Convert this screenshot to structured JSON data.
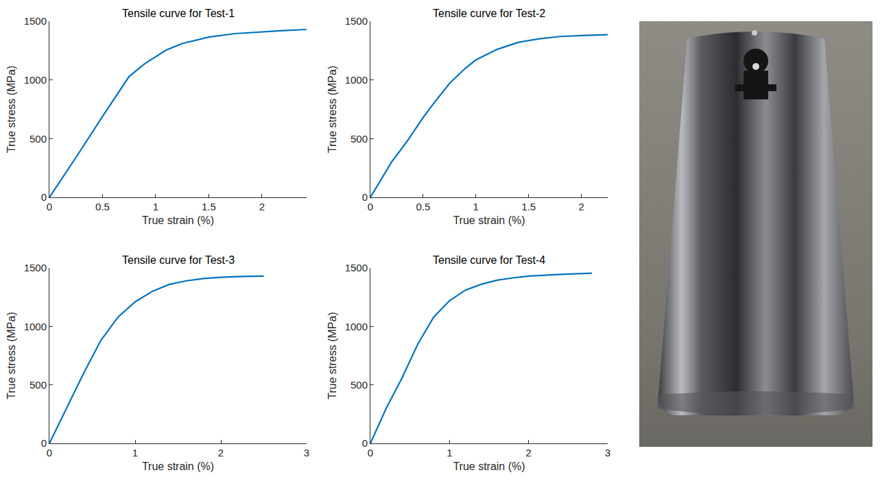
{
  "chart_data": [
    {
      "type": "line",
      "title": "Tensile curve for Test-1",
      "x_label": "True strain (%)",
      "y_label": "True stress (MPa)",
      "x": [
        0,
        0.25,
        0.5,
        0.75,
        0.9,
        1.0,
        1.1,
        1.25,
        1.5,
        1.75,
        2.0,
        2.2,
        2.42
      ],
      "values": [
        0,
        340,
        690,
        1030,
        1140,
        1200,
        1255,
        1310,
        1365,
        1395,
        1410,
        1420,
        1430
      ],
      "color": "#0072bd",
      "xlim": [
        0,
        2.42
      ],
      "xticks": [
        0,
        0.5,
        1,
        1.5,
        2
      ],
      "ylim": [
        0,
        1500
      ],
      "yticks": [
        0,
        500,
        1000,
        1500
      ],
      "grid": false
    },
    {
      "type": "line",
      "title": "Tensile curve for Test-2",
      "x_label": "True strain (%)",
      "y_label": "True stress (MPa)",
      "x": [
        0,
        0.2,
        0.35,
        0.5,
        0.6,
        0.75,
        0.9,
        1.0,
        1.2,
        1.4,
        1.6,
        1.8,
        2.0,
        2.25
      ],
      "values": [
        0,
        300,
        480,
        680,
        800,
        970,
        1100,
        1170,
        1260,
        1320,
        1350,
        1370,
        1378,
        1385
      ],
      "color": "#0072bd",
      "xlim": [
        0,
        2.25
      ],
      "xticks": [
        0,
        0.5,
        1,
        1.5,
        2
      ],
      "ylim": [
        0,
        1500
      ],
      "yticks": [
        0,
        500,
        1000,
        1500
      ],
      "grid": false
    },
    {
      "type": "line",
      "title": "Tensile curve for Test-3",
      "x_label": "True strain (%)",
      "y_label": "True stress (MPa)",
      "x": [
        0,
        0.2,
        0.4,
        0.6,
        0.8,
        1.0,
        1.2,
        1.4,
        1.6,
        1.8,
        2.0,
        2.25,
        2.5
      ],
      "values": [
        0,
        300,
        600,
        880,
        1080,
        1210,
        1300,
        1360,
        1390,
        1410,
        1420,
        1428,
        1430
      ],
      "color": "#0072bd",
      "xlim": [
        0,
        3
      ],
      "xticks": [
        0,
        1,
        2,
        3
      ],
      "ylim": [
        0,
        1500
      ],
      "yticks": [
        0,
        500,
        1000,
        1500
      ],
      "grid": false
    },
    {
      "type": "line",
      "title": "Tensile curve for Test-4",
      "x_label": "True strain (%)",
      "y_label": "True stress (MPa)",
      "x": [
        0,
        0.2,
        0.4,
        0.6,
        0.8,
        1.0,
        1.2,
        1.4,
        1.6,
        1.8,
        2.0,
        2.4,
        2.8
      ],
      "values": [
        0,
        300,
        560,
        850,
        1080,
        1220,
        1310,
        1360,
        1395,
        1415,
        1430,
        1445,
        1455
      ],
      "color": "#0072bd",
      "xlim": [
        0,
        3
      ],
      "xticks": [
        0,
        1,
        2,
        3
      ],
      "ylim": [
        0,
        1500
      ],
      "yticks": [
        0,
        500,
        1000,
        1500
      ],
      "grid": false
    }
  ]
}
